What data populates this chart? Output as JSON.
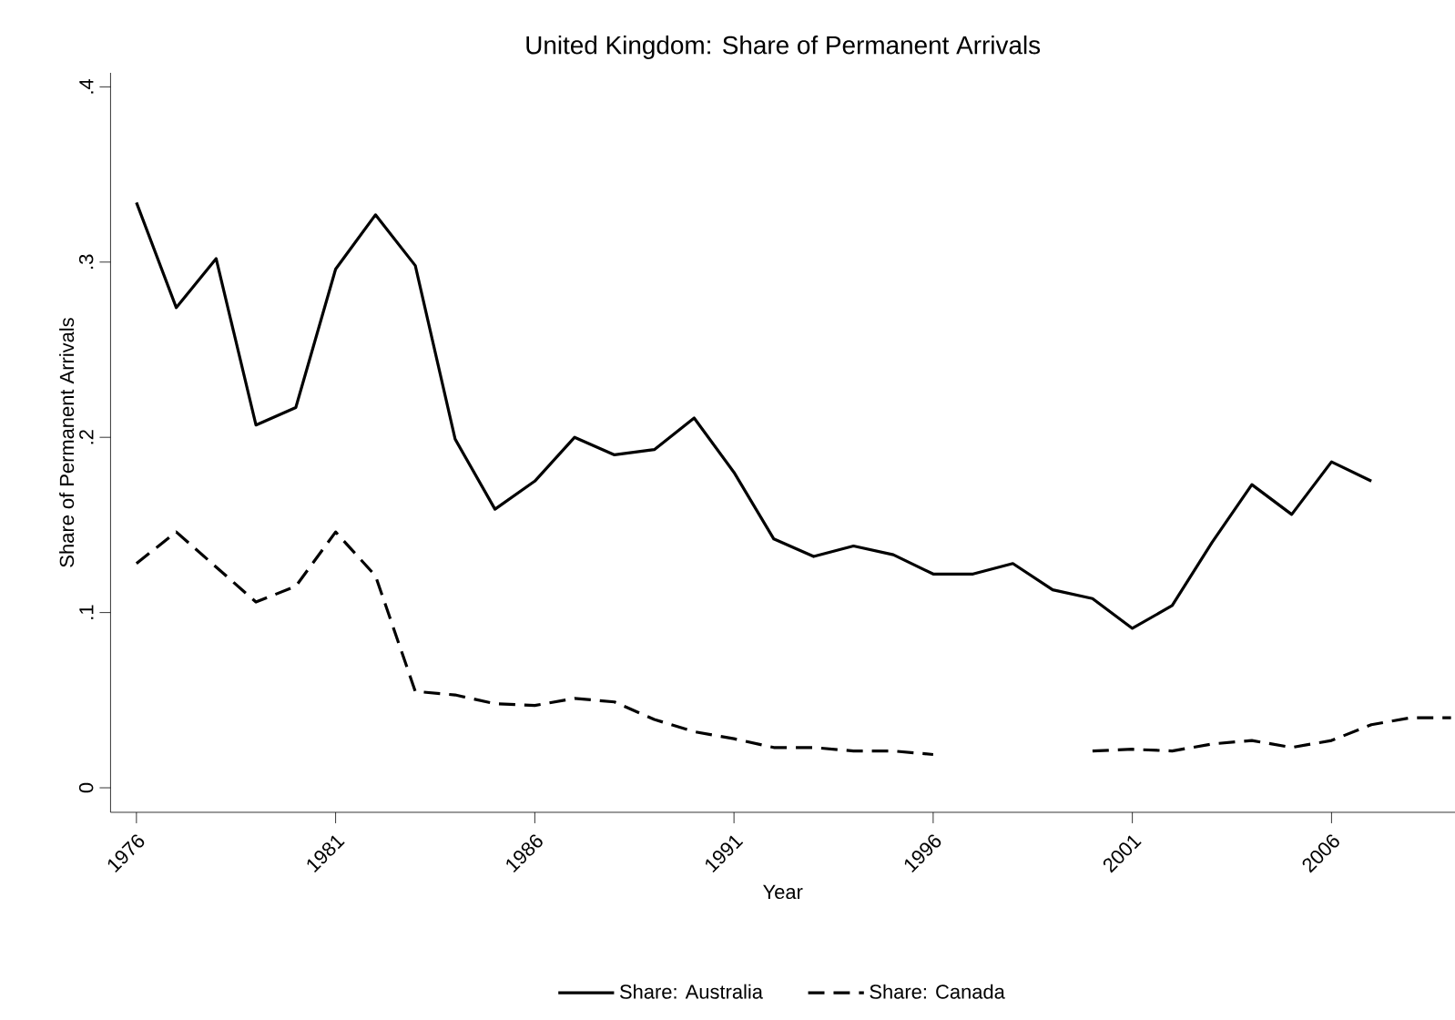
{
  "chart_data": {
    "type": "line",
    "title": "United Kingdom: Share of Permanent Arrivals",
    "xlabel": "Year",
    "ylabel": "Share of Permanent Arrivals",
    "x": [
      1976,
      1977,
      1978,
      1979,
      1980,
      1981,
      1982,
      1983,
      1984,
      1985,
      1986,
      1987,
      1988,
      1989,
      1990,
      1991,
      1992,
      1993,
      1994,
      1995,
      1996,
      1997,
      1998,
      1999,
      2000,
      2001,
      2002,
      2003,
      2004,
      2005,
      2006,
      2007,
      2008,
      2009
    ],
    "series": [
      {
        "name": "Share: Australia",
        "color": "#000000",
        "line_style": "solid",
        "values": [
          0.334,
          0.274,
          0.302,
          0.207,
          0.217,
          0.296,
          0.327,
          0.298,
          0.199,
          0.159,
          0.175,
          0.2,
          0.19,
          0.193,
          0.211,
          0.18,
          0.142,
          0.132,
          0.138,
          0.133,
          0.122,
          0.122,
          0.128,
          0.113,
          0.108,
          0.091,
          0.104,
          0.14,
          0.173,
          0.156,
          0.186,
          0.175,
          null,
          null
        ]
      },
      {
        "name": "Share: Canada",
        "color": "#000000",
        "line_style": "dashed",
        "values": [
          0.128,
          0.146,
          0.126,
          0.106,
          0.115,
          0.146,
          0.121,
          0.055,
          0.053,
          0.048,
          0.047,
          0.051,
          0.049,
          0.039,
          0.032,
          0.028,
          0.023,
          0.023,
          0.021,
          0.021,
          0.019,
          null,
          null,
          null,
          0.021,
          0.022,
          0.021,
          0.025,
          0.027,
          0.023,
          0.027,
          0.036,
          0.04,
          0.04
        ]
      }
    ],
    "xlim": [
      1975.35,
      2009.1
    ],
    "ylim": [
      -0.014,
      0.408
    ],
    "xticks": [
      1976,
      1981,
      1986,
      1991,
      1996,
      2001,
      2006
    ],
    "yticks": [
      {
        "value": 0,
        "label": "0"
      },
      {
        "value": 0.1,
        "label": ".1"
      },
      {
        "value": 0.2,
        "label": ".2"
      },
      {
        "value": 0.3,
        "label": ".3"
      },
      {
        "value": 0.4,
        "label": ".4"
      }
    ],
    "grid": false,
    "legend": "bottom",
    "marker": "none"
  }
}
